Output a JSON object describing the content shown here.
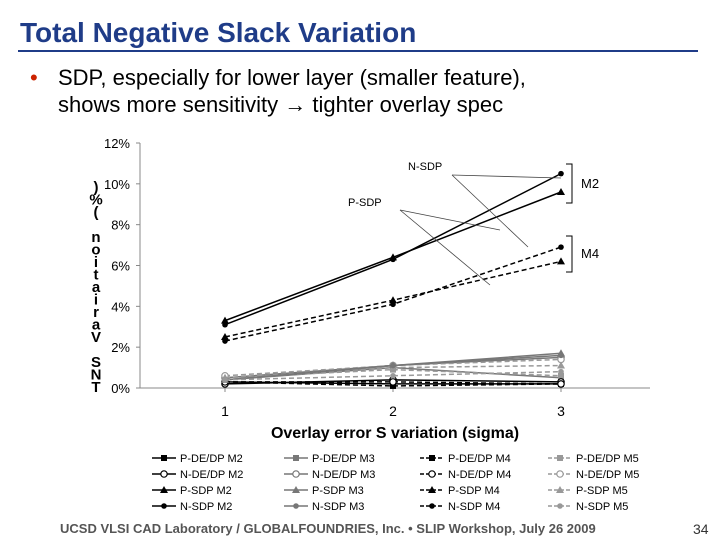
{
  "slide": {
    "title": "Total Negative Slack Variation",
    "bullet_line1": "SDP, especially for lower layer (smaller feature),",
    "bullet_line2_a": "shows more sensitivity",
    "bullet_arrow": "→",
    "bullet_line2_b": "tighter overlay spec",
    "footer": "UCSD VLSI CAD Laboratory / GLOBALFOUNDRIES, Inc. • SLIP Workshop, July 26 2009",
    "page_number": "34",
    "accent_color": "#1f3c88",
    "bullet_color": "#cc2200"
  },
  "chart_data": {
    "type": "line",
    "title": "",
    "xlabel": "Overlay error S variation (sigma)",
    "ylabel": ")%( noitairaV SNT",
    "x": [
      1,
      2,
      3
    ],
    "ylim": [
      0,
      12
    ],
    "yticks": [
      "0%",
      "2%",
      "4%",
      "6%",
      "8%",
      "10%",
      "12%"
    ],
    "xticks": [
      "1",
      "2",
      "3"
    ],
    "grid": false,
    "legend_position": "bottom",
    "annotations": {
      "n_sdp": "N-SDP",
      "p_sdp": "P-SDP",
      "m2": "M2",
      "m4": "M4"
    },
    "series": [
      {
        "name": "P-DE/DP M2",
        "values": [
          0.3,
          0.2,
          0.2
        ],
        "color": "#000000",
        "dash": "solid",
        "marker": "square"
      },
      {
        "name": "P-DE/DP M3",
        "values": [
          0.4,
          1.0,
          0.5
        ],
        "color": "#777777",
        "dash": "solid",
        "marker": "square"
      },
      {
        "name": "P-DE/DP M4",
        "values": [
          0.3,
          0.1,
          0.2
        ],
        "color": "#000000",
        "dash": "dash",
        "marker": "square"
      },
      {
        "name": "P-DE/DP M5",
        "values": [
          0.5,
          0.9,
          0.6
        ],
        "color": "#999999",
        "dash": "dash",
        "marker": "square"
      },
      {
        "name": "N-DE/DP M2",
        "values": [
          0.2,
          0.4,
          0.3
        ],
        "color": "#000000",
        "dash": "solid",
        "marker": "circle"
      },
      {
        "name": "N-DE/DP M3",
        "values": [
          0.5,
          1.1,
          1.5
        ],
        "color": "#777777",
        "dash": "solid",
        "marker": "circle"
      },
      {
        "name": "N-DE/DP M4",
        "values": [
          0.3,
          0.3,
          0.2
        ],
        "color": "#000000",
        "dash": "dash",
        "marker": "circle"
      },
      {
        "name": "N-DE/DP M5",
        "values": [
          0.6,
          1.1,
          1.4
        ],
        "color": "#999999",
        "dash": "dash",
        "marker": "circle"
      },
      {
        "name": "P-SDP M2",
        "values": [
          3.3,
          6.4,
          9.6
        ],
        "color": "#000000",
        "dash": "solid",
        "marker": "triangle"
      },
      {
        "name": "P-SDP M3",
        "values": [
          0.4,
          1.1,
          1.7
        ],
        "color": "#777777",
        "dash": "solid",
        "marker": "triangle"
      },
      {
        "name": "P-SDP M4",
        "values": [
          2.5,
          4.3,
          6.2
        ],
        "color": "#000000",
        "dash": "dash",
        "marker": "triangle"
      },
      {
        "name": "P-SDP M5",
        "values": [
          0.5,
          1.0,
          1.1
        ],
        "color": "#999999",
        "dash": "dash",
        "marker": "triangle"
      },
      {
        "name": "N-SDP M2",
        "values": [
          3.1,
          6.3,
          10.5
        ],
        "color": "#000000",
        "dash": "solid",
        "marker": "dot"
      },
      {
        "name": "N-SDP M3",
        "values": [
          0.4,
          1.1,
          1.6
        ],
        "color": "#777777",
        "dash": "solid",
        "marker": "dot"
      },
      {
        "name": "N-SDP M4",
        "values": [
          2.3,
          4.1,
          6.9
        ],
        "color": "#000000",
        "dash": "dash",
        "marker": "dot"
      },
      {
        "name": "N-SDP M5",
        "values": [
          0.4,
          0.6,
          0.8
        ],
        "color": "#999999",
        "dash": "dash",
        "marker": "dot"
      }
    ]
  }
}
